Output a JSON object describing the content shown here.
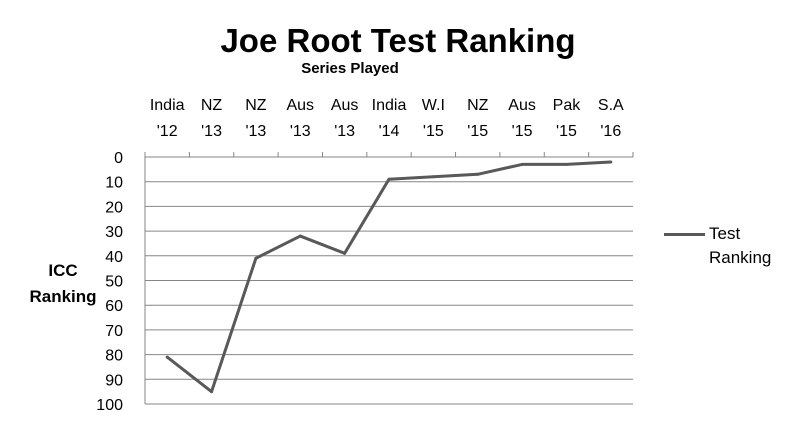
{
  "chart_data": {
    "type": "line",
    "title": "Joe Root Test Ranking",
    "xlabel": "Series Played",
    "ylabel_line1": "ICC",
    "ylabel_line2": "Ranking",
    "x_axis_position": "top",
    "y_reversed": true,
    "ylim": [
      0,
      100
    ],
    "ytick_step": 10,
    "grid": true,
    "legend_position": "right",
    "categories": [
      {
        "line1": "India",
        "line2": "'12"
      },
      {
        "line1": "NZ",
        "line2": "'13"
      },
      {
        "line1": "NZ",
        "line2": "'13"
      },
      {
        "line1": "Aus",
        "line2": "'13"
      },
      {
        "line1": "Aus",
        "line2": "'13"
      },
      {
        "line1": "India",
        "line2": "'14"
      },
      {
        "line1": "W.I",
        "line2": "'15"
      },
      {
        "line1": "NZ",
        "line2": "'15"
      },
      {
        "line1": "Aus",
        "line2": "'15"
      },
      {
        "line1": "Pak",
        "line2": "'15"
      },
      {
        "line1": "S.A",
        "line2": "'16"
      }
    ],
    "series": [
      {
        "name": "Test Ranking",
        "legend_line1": "Test",
        "legend_line2": "Ranking",
        "color": "#595959",
        "values": [
          81,
          95,
          41,
          32,
          39,
          9,
          8,
          7,
          3,
          3,
          2
        ]
      }
    ]
  }
}
